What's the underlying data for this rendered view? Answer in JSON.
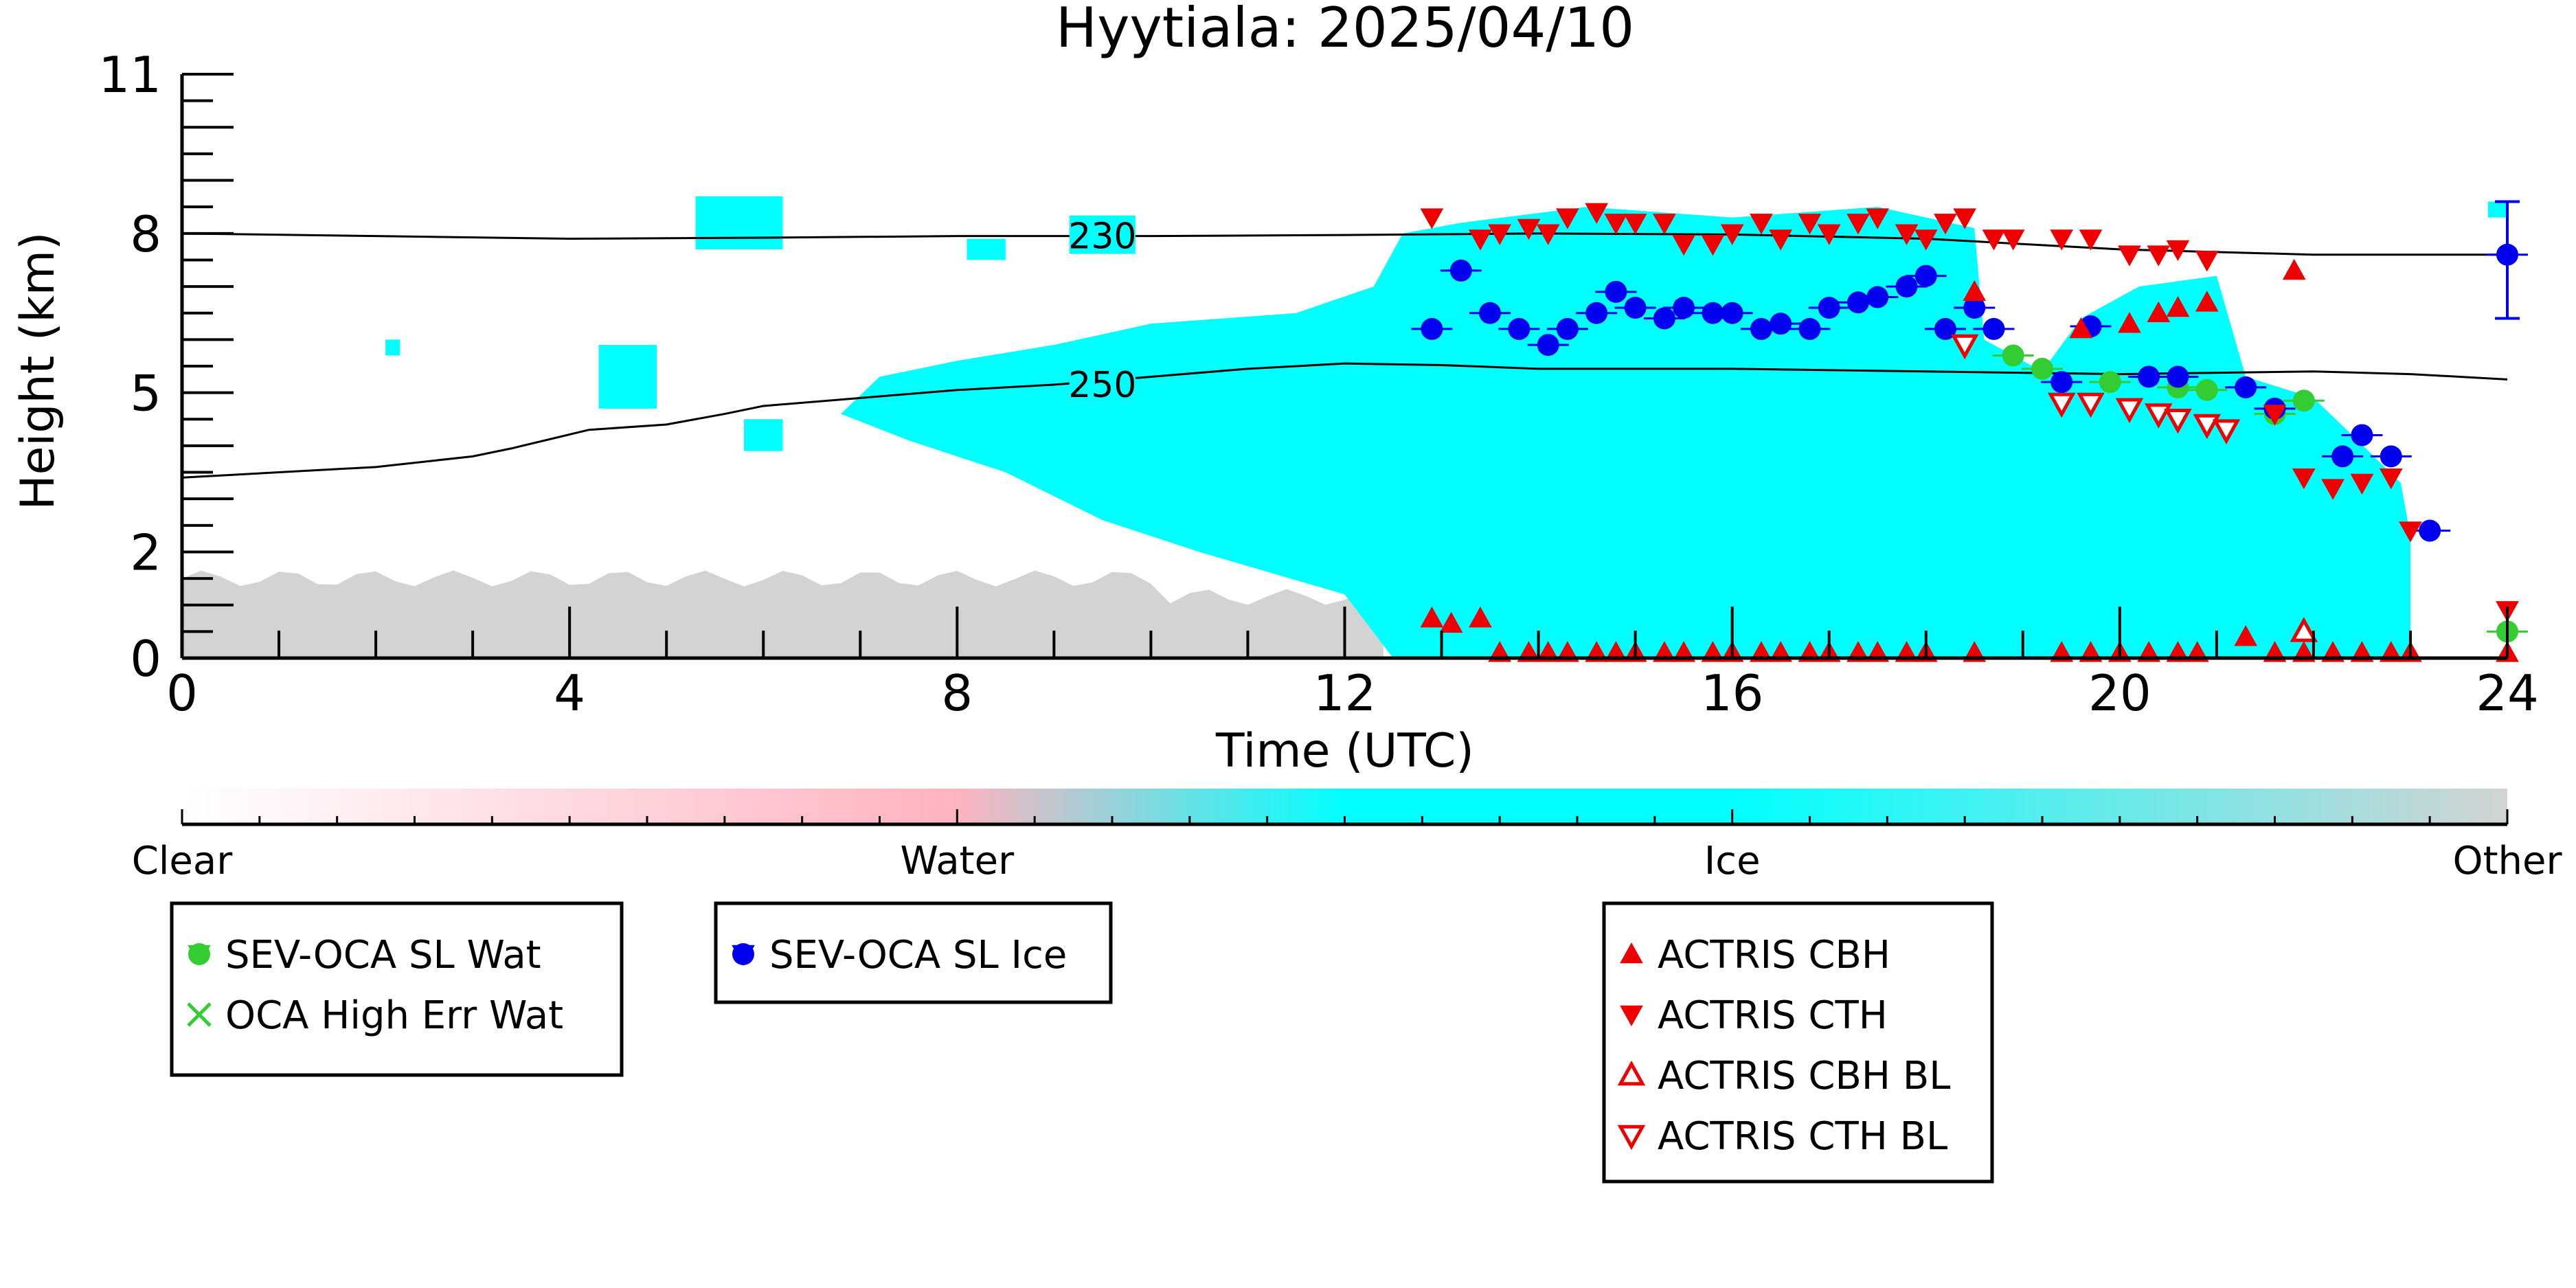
{
  "chart_data": {
    "type": "scatter",
    "title": "Hyytiala: 2025/04/10",
    "xlabel": "Time (UTC)",
    "ylabel": "Height (km)",
    "xlim": [
      0,
      24
    ],
    "ylim": [
      0,
      11
    ],
    "x_ticks": [
      "0",
      "4",
      "8",
      "12",
      "16",
      "20",
      "24"
    ],
    "y_ticks": [
      "0",
      "2",
      "5",
      "8",
      "11"
    ],
    "colorbar": {
      "labels": [
        "Clear",
        "Water",
        "Ice",
        "Other"
      ],
      "colors": [
        "#ffffff",
        "#ffb3bf",
        "#00ffff",
        "#d3d3d3"
      ]
    },
    "background_layers": [
      {
        "name": "Other",
        "color": "#d3d3d3",
        "segments": [
          {
            "x_start": 0,
            "x_end": 12.4,
            "top_km": 1.5
          }
        ]
      },
      {
        "name": "Ice",
        "color": "#00ffff",
        "segments": [
          {
            "x_start": 6.8,
            "x_end": 23.0,
            "top_km": 8.5
          }
        ]
      }
    ],
    "isotherms": [
      {
        "label": "230",
        "x": [
          0,
          2,
          4,
          6,
          8,
          10,
          12,
          14,
          16,
          18,
          20,
          22,
          24
        ],
        "y": [
          8.0,
          7.95,
          7.9,
          7.92,
          7.95,
          7.95,
          7.97,
          8.0,
          7.98,
          7.9,
          7.7,
          7.6,
          7.6
        ]
      },
      {
        "label": "250",
        "x": [
          0,
          1,
          2,
          3,
          3.4,
          4.2,
          5,
          5.6,
          6,
          7,
          8,
          9,
          10,
          11,
          12,
          13,
          14,
          16,
          18,
          20,
          22,
          23,
          24
        ],
        "y": [
          3.4,
          3.5,
          3.6,
          3.8,
          3.95,
          4.3,
          4.4,
          4.6,
          4.75,
          4.9,
          5.05,
          5.15,
          5.3,
          5.45,
          5.55,
          5.52,
          5.45,
          5.45,
          5.4,
          5.35,
          5.4,
          5.35,
          5.25
        ]
      }
    ],
    "series": [
      {
        "name": "SEV-OCA SL Wat",
        "marker": "circle-filled",
        "color": "#33cc33",
        "x": [
          18.9,
          19.2,
          19.9,
          20.6,
          20.9,
          21.6,
          21.9,
          24.0
        ],
        "y": [
          5.7,
          5.45,
          5.2,
          5.1,
          5.05,
          4.6,
          4.85,
          0.5
        ]
      },
      {
        "name": "OCA High Err Wat",
        "marker": "x",
        "color": "#33cc33",
        "x": [],
        "y": []
      },
      {
        "name": "SEV-OCA SL Ice",
        "marker": "circle-filled",
        "color": "#0000ee",
        "x": [
          12.9,
          13.2,
          13.5,
          13.8,
          14.1,
          14.3,
          14.6,
          14.8,
          15.0,
          15.3,
          15.5,
          15.8,
          16.0,
          16.3,
          16.5,
          16.8,
          17.0,
          17.3,
          17.5,
          17.8,
          18.0,
          18.2,
          18.5,
          18.7,
          19.4,
          19.7,
          20.3,
          20.6,
          21.3,
          21.6,
          22.3,
          22.5,
          22.8,
          23.2,
          24.0
        ],
        "y": [
          6.2,
          7.3,
          6.5,
          6.2,
          5.9,
          6.2,
          6.5,
          6.9,
          6.6,
          6.4,
          6.6,
          6.5,
          6.5,
          6.2,
          6.3,
          6.2,
          6.6,
          6.7,
          6.8,
          7.0,
          7.2,
          6.2,
          6.6,
          6.2,
          5.2,
          6.25,
          5.3,
          5.3,
          5.1,
          4.7,
          3.8,
          4.2,
          3.8,
          2.4,
          7.6
        ]
      },
      {
        "name": "ACTRIS CBH",
        "marker": "triangle-up-filled",
        "color": "#ee0000",
        "x": [
          12.9,
          13.1,
          13.4,
          13.6,
          13.9,
          14.1,
          14.3,
          14.6,
          14.8,
          15.0,
          15.3,
          15.5,
          15.8,
          16.0,
          16.3,
          16.5,
          16.8,
          17.0,
          17.3,
          17.5,
          17.8,
          18.0,
          18.5,
          19.4,
          19.7,
          20.0,
          20.3,
          20.6,
          20.8,
          21.3,
          21.6,
          21.9,
          22.2,
          22.5,
          22.8,
          23.0,
          24.0,
          18.5,
          19.6,
          20.1,
          20.4,
          20.6,
          20.9,
          21.8
        ],
        "y": [
          0.75,
          0.65,
          0.75,
          0.1,
          0.1,
          0.1,
          0.1,
          0.1,
          0.1,
          0.1,
          0.1,
          0.1,
          0.1,
          0.1,
          0.1,
          0.1,
          0.1,
          0.1,
          0.1,
          0.1,
          0.1,
          0.1,
          0.1,
          0.1,
          0.1,
          0.1,
          0.1,
          0.1,
          0.1,
          0.4,
          0.1,
          0.1,
          0.1,
          0.1,
          0.1,
          0.1,
          0.1,
          6.9,
          6.2,
          6.3,
          6.5,
          6.6,
          6.7,
          7.3
        ]
      },
      {
        "name": "ACTRIS CTH",
        "marker": "triangle-down-filled",
        "color": "#ee0000",
        "x": [
          12.9,
          13.4,
          13.6,
          13.9,
          14.1,
          14.3,
          14.6,
          14.8,
          15.0,
          15.3,
          15.5,
          15.8,
          16.0,
          16.3,
          16.5,
          16.8,
          17.0,
          17.3,
          17.5,
          17.8,
          18.0,
          18.2,
          18.4,
          18.7,
          18.9,
          19.4,
          19.7,
          20.1,
          20.4,
          20.6,
          20.9,
          21.6,
          21.9,
          22.2,
          22.5,
          22.8,
          23.0,
          24.0
        ],
        "y": [
          8.3,
          7.9,
          8.0,
          8.1,
          8.0,
          8.3,
          8.4,
          8.2,
          8.2,
          8.2,
          7.8,
          7.8,
          8.0,
          8.2,
          7.9,
          8.2,
          8.0,
          8.2,
          8.3,
          8.0,
          7.9,
          8.2,
          8.3,
          7.9,
          7.9,
          7.9,
          7.9,
          7.6,
          7.6,
          7.7,
          7.5,
          4.6,
          3.4,
          3.2,
          3.3,
          3.4,
          2.4,
          0.9
        ]
      },
      {
        "name": "ACTRIS CBH BL",
        "marker": "triangle-up-open",
        "color": "#ee0000",
        "x": [
          21.9
        ],
        "y": [
          0.5
        ]
      },
      {
        "name": "ACTRIS CTH BL",
        "marker": "triangle-down-open",
        "color": "#ee0000",
        "x": [
          18.4,
          19.4,
          19.7,
          20.1,
          20.4,
          20.6,
          20.9,
          21.1
        ],
        "y": [
          5.9,
          4.8,
          4.8,
          4.7,
          4.6,
          4.5,
          4.4,
          4.3
        ]
      }
    ],
    "ice_error_bar_24": {
      "x": 24.0,
      "y": 7.6,
      "low": 6.4,
      "high": 8.6
    },
    "legend_groups": [
      [
        "SEV-OCA SL Wat",
        "OCA High Err Wat"
      ],
      [
        "SEV-OCA SL Ice"
      ],
      [
        "ACTRIS CBH",
        "ACTRIS CTH",
        "ACTRIS CBH BL",
        "ACTRIS CTH BL"
      ]
    ],
    "grid": false
  }
}
